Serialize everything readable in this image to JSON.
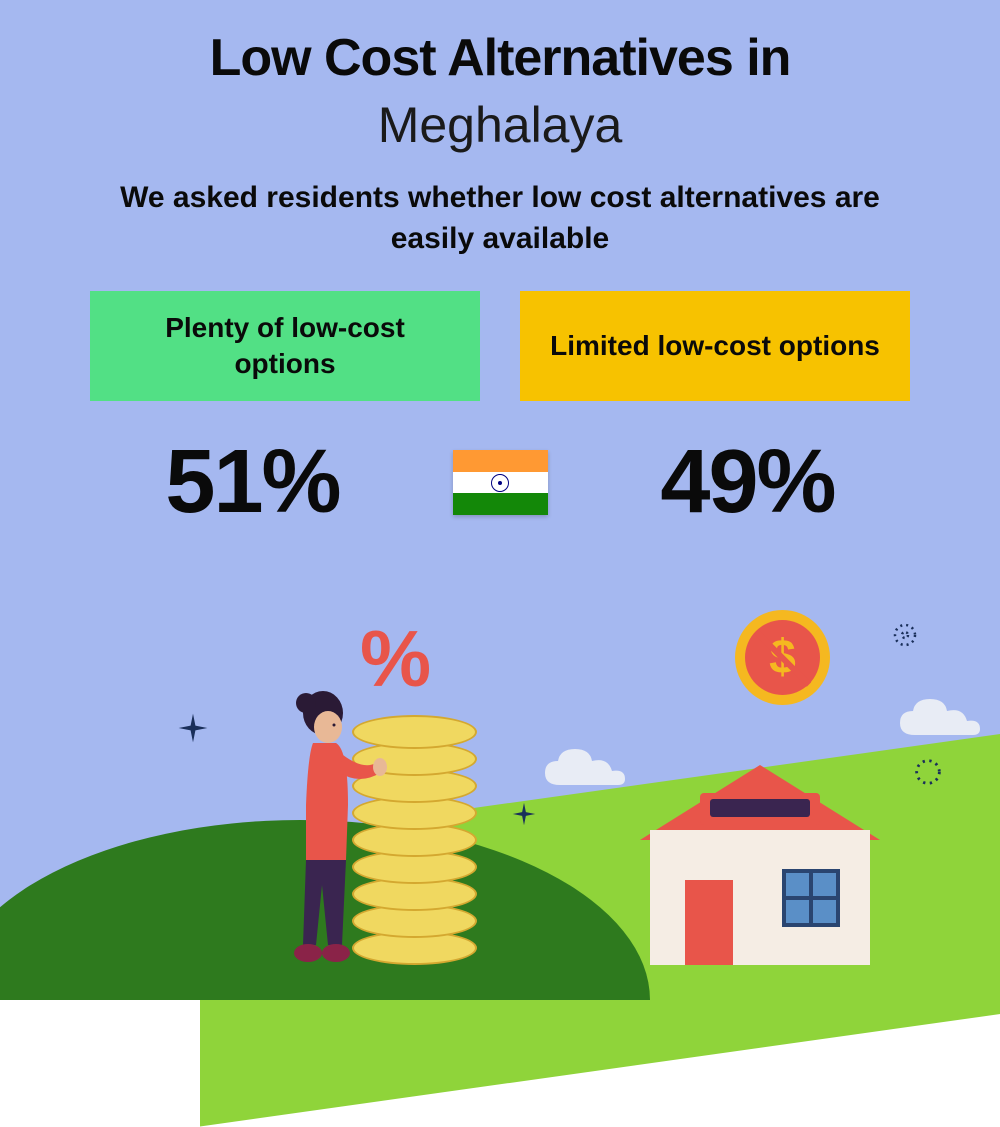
{
  "infographic": {
    "type": "infographic",
    "background_color": "#a5b8f0",
    "title_main": "Low Cost Alternatives in",
    "title_main_fontsize": 52,
    "title_main_color": "#0a0a0a",
    "title_sub": "Meghalaya",
    "title_sub_fontsize": 50,
    "title_sub_color": "#1a1a1a",
    "subtitle": "We asked residents whether low cost alternatives are easily available",
    "subtitle_fontsize": 30,
    "subtitle_color": "#0a0a0a",
    "options": [
      {
        "label": "Plenty of low-cost options",
        "background_color": "#52e085",
        "text_color": "#0a0a0a",
        "fontsize": 28,
        "percentage": "51%"
      },
      {
        "label": "Limited low-cost options",
        "background_color": "#f7c200",
        "text_color": "#0a0a0a",
        "fontsize": 28,
        "percentage": "49%"
      }
    ],
    "percentage_fontsize": 90,
    "percentage_color": "#0a0a0a",
    "flag": {
      "stripe1_color": "#ff9933",
      "stripe2_color": "#ffffff",
      "stripe3_color": "#138808",
      "chakra_color": "#000080"
    },
    "illustration": {
      "hill_dark_color": "#2e7a1e",
      "hill_light_color": "#8fd43a",
      "sparkle_color": "#1a2f5a",
      "cloud_color": "#e8ecf5",
      "coin_outer_color": "#f5b820",
      "coin_inner_color": "#e8554a",
      "coin_dollar_color": "#f5b820",
      "house_roof_color": "#e8554a",
      "house_roof_border": "75px solid #e8554a",
      "house_body_color": "#f5ede4",
      "house_door_color": "#e8554a",
      "house_window_bg": "#5a8fc7",
      "person_shirt_color": "#e8554a",
      "person_pants_color": "#3a2550",
      "person_skin_color": "#e8b896",
      "person_hair_color": "#2a1a35",
      "coin_stack_color": "#f0d860",
      "coin_stack_border": "#d4a830",
      "percent_color": "#e8554a"
    }
  }
}
